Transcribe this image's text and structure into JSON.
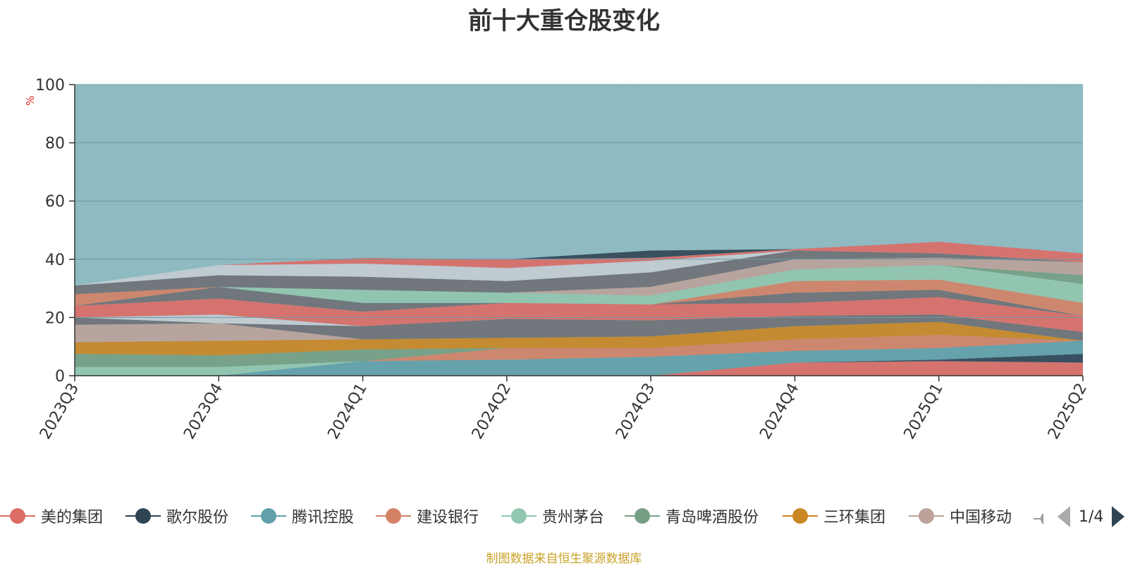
{
  "chart_data": {
    "type": "area",
    "title": "前十大重仓股变化",
    "ylabel": "%",
    "ylim": [
      0,
      100
    ],
    "yticks": [
      0,
      20,
      40,
      60,
      80,
      100
    ],
    "categories": [
      "2023Q3",
      "2023Q4",
      "2024Q1",
      "2024Q2",
      "2024Q3",
      "2024Q4",
      "2025Q1",
      "2025Q2"
    ],
    "stacked": true,
    "series": [
      {
        "name": "美的集团",
        "color": "#dd6b66",
        "values": [
          0,
          0,
          0,
          0,
          0,
          4.5,
          5,
          4.5
        ]
      },
      {
        "name": "歌尔股份",
        "color": "#2f4554",
        "values": [
          0,
          0,
          0,
          0,
          0,
          0,
          0.5,
          3
        ]
      },
      {
        "name": "腾讯控股",
        "color": "#61a0a8",
        "values": [
          0,
          0,
          5,
          5.5,
          6.5,
          4,
          4,
          4.5
        ]
      },
      {
        "name": "建设银行",
        "color": "#d48265",
        "values": [
          0,
          0,
          0,
          4,
          3,
          4,
          4.5,
          0
        ]
      },
      {
        "name": "贵州茅台",
        "color": "#91c7ae",
        "values": [
          3,
          3,
          0,
          0,
          0,
          0,
          0,
          0
        ]
      },
      {
        "name": "青岛啤酒股份",
        "color": "#749f83",
        "values": [
          4.5,
          4,
          4,
          0,
          0,
          0,
          0,
          0
        ]
      },
      {
        "name": "三环集团",
        "color": "#ca8622",
        "values": [
          4,
          5,
          3.5,
          3.5,
          4,
          4.5,
          4.5,
          0
        ]
      },
      {
        "name": "中国移动",
        "color": "#bda29a",
        "values": [
          6,
          6,
          0,
          0,
          0,
          0,
          0,
          0
        ]
      },
      {
        "name": "",
        "color": "#6e7074",
        "values": [
          2.5,
          0,
          4.5,
          6.5,
          5.5,
          3.5,
          2.5,
          3
        ]
      },
      {
        "name": "",
        "color": "#c4ccd3",
        "values": [
          0,
          3,
          0,
          0,
          0,
          0,
          0,
          0
        ]
      },
      {
        "name": "",
        "color": "#dd6b66",
        "values": [
          4,
          5.5,
          5,
          5.5,
          5.5,
          4.5,
          6,
          5.5
        ]
      },
      {
        "name": "",
        "color": "#6e7074",
        "values": [
          0,
          4,
          3,
          0,
          0,
          3.5,
          2.5,
          0
        ]
      },
      {
        "name": "",
        "color": "#d48265",
        "values": [
          4,
          0,
          0,
          0,
          0,
          4,
          3.5,
          4.5
        ]
      },
      {
        "name": "",
        "color": "#91c7ae",
        "values": [
          0,
          0,
          4.5,
          3.5,
          3,
          4,
          5,
          6.5
        ]
      },
      {
        "name": "",
        "color": "#749f83",
        "values": [
          0,
          0,
          0,
          0,
          0,
          0,
          0,
          3
        ]
      },
      {
        "name": "",
        "color": "#bda29a",
        "values": [
          0,
          0,
          0,
          0,
          3,
          3.5,
          2.5,
          4.5
        ]
      },
      {
        "name": "",
        "color": "#6e7074",
        "values": [
          3,
          4,
          4.5,
          4,
          5,
          3,
          1.5,
          0
        ]
      },
      {
        "name": "",
        "color": "#c4ccd3",
        "values": [
          0,
          3.5,
          4.5,
          4.5,
          4,
          0,
          0,
          0
        ]
      },
      {
        "name": "",
        "color": "#dd6b66",
        "values": [
          0,
          0,
          2,
          3,
          1,
          0.5,
          4,
          3
        ]
      },
      {
        "name": "",
        "color": "#2f4554",
        "values": [
          0,
          0,
          0,
          0,
          2.5,
          0,
          0,
          0
        ]
      },
      {
        "name": "",
        "color": "#8fbac2",
        "values": [
          62.5,
          61.5,
          58,
          57.5,
          57,
          56.5,
          54,
          57.5
        ]
      }
    ]
  },
  "legend": {
    "items": [
      {
        "label": "美的集团",
        "color": "#dd6b66"
      },
      {
        "label": "歌尔股份",
        "color": "#2f4554"
      },
      {
        "label": "腾讯控股",
        "color": "#61a0a8"
      },
      {
        "label": "建设银行",
        "color": "#d48265"
      },
      {
        "label": "贵州茅台",
        "color": "#91c7ae"
      },
      {
        "label": "青岛啤酒股份",
        "color": "#749f83"
      },
      {
        "label": "三环集团",
        "color": "#ca8622"
      },
      {
        "label": "中国移动",
        "color": "#bda29a"
      }
    ],
    "page": "1/4"
  },
  "source": "制图数据来自恒生聚源数据库"
}
